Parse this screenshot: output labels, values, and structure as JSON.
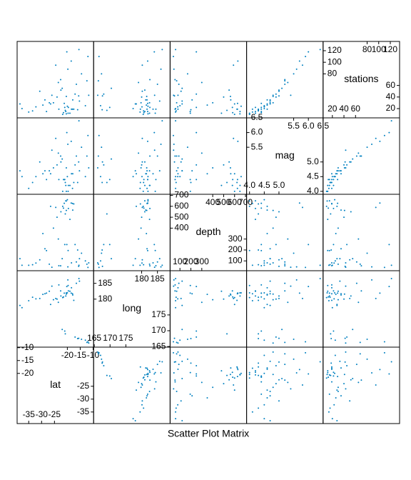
{
  "chart_data": {
    "type": "splom",
    "title": "Scatter Plot Matrix",
    "color": "#0080c0",
    "variables": [
      {
        "name": "lat",
        "lim": [
          -39.5,
          -9.8
        ],
        "ticks": [
          -35,
          -30,
          -25,
          -20,
          -15,
          -10
        ],
        "values": [
          -20.4,
          -20.6,
          -26.0,
          -18.0,
          -20.4,
          -19.7,
          -11.7,
          -28.1,
          -28.7,
          -17.5,
          -21.5,
          -23.3,
          -17.9,
          -15.6,
          -18.4,
          -12.4,
          -21.2,
          -13.0,
          -19.6,
          -22.6,
          -32.2,
          -35.0,
          -25.4,
          -30.7,
          -16.0,
          -21.0,
          -22.0,
          -20.8,
          -19.8,
          -15.3,
          -24.0,
          -26.5,
          -23.5,
          -18.5,
          -20.2,
          -15.5,
          -37.6,
          -38.4,
          -14.5,
          -17.0,
          -22.5,
          -19.0,
          -27.0,
          -12.0,
          -29.5,
          -16.5,
          -21.8,
          -24.5,
          -33.5,
          -20.0
        ]
      },
      {
        "name": "long",
        "lim": [
          164.8,
          189
        ],
        "ticks": [
          165,
          170,
          175,
          180,
          185
        ],
        "values": [
          181.6,
          181.0,
          184.1,
          181.7,
          182.0,
          184.3,
          166.1,
          181.9,
          181.7,
          179.6,
          180.7,
          184.5,
          181.3,
          167.6,
          183.6,
          166.3,
          181.9,
          167.0,
          182.6,
          182.6,
          180.1,
          179.5,
          179.8,
          180.2,
          167.5,
          169.9,
          170.4,
          169.0,
          186.1,
          185.7,
          180.0,
          178.3,
          179.0,
          181.9,
          184.0,
          186.5,
          177.3,
          178.0,
          167.3,
          168.0,
          181.0,
          182.5,
          182.5,
          166.5,
          181.5,
          185.0,
          180.5,
          180.2,
          180.6,
          182.0
        ]
      },
      {
        "name": "depth",
        "lim": [
          10,
          710
        ],
        "ticks": [
          100,
          200,
          300,
          400,
          500,
          600,
          700
        ],
        "values": [
          562,
          650,
          42,
          626,
          649,
          195,
          82,
          194,
          211,
          622,
          583,
          56,
          565,
          50,
          82,
          70,
          627,
          100,
          580,
          55,
          80,
          60,
          400,
          110,
          200,
          250,
          120,
          530,
          45,
          120,
          500,
          600,
          300,
          630,
          250,
          60,
          60,
          120,
          170,
          250,
          550,
          480,
          70,
          40,
          350,
          90,
          600,
          590,
          65,
          660
        ]
      },
      {
        "name": "mag",
        "lim": [
          3.9,
          6.5
        ],
        "ticks": [
          {
            "value": 4,
            "label": "4.0"
          },
          4.5,
          {
            "value": 5,
            "label": "5.0"
          },
          5.5,
          {
            "value": 6,
            "label": "6.0"
          },
          6.5
        ],
        "values": [
          4.8,
          4.2,
          5.4,
          4.1,
          4.0,
          4.0,
          4.8,
          4.4,
          4.7,
          4.3,
          4.4,
          4.4,
          4.6,
          5.0,
          4.6,
          5.2,
          4.4,
          4.5,
          4.2,
          5.2,
          4.5,
          4.1,
          4.8,
          5.0,
          4.3,
          4.4,
          5.1,
          4.3,
          5.6,
          4.7,
          4.9,
          4.6,
          5.3,
          5.7,
          6.0,
          6.4,
          4.5,
          4.7,
          5.5,
          4.9,
          5.0,
          4.2,
          4.7,
          5.9,
          4.6,
          5.2,
          4.0,
          5.8,
          4.3,
          4.5
        ]
      },
      {
        "name": "stations",
        "lim": [
          4,
          136
        ],
        "ticks": [
          20,
          40,
          60,
          80,
          100,
          120
        ],
        "values": [
          41,
          15,
          43,
          19,
          11,
          12,
          43,
          15,
          35,
          19,
          13,
          19,
          35,
          42,
          19,
          68,
          29,
          25,
          22,
          70,
          23,
          14,
          30,
          50,
          18,
          22,
          55,
          17,
          88,
          33,
          40,
          28,
          65,
          102,
          118,
          122,
          20,
          28,
          80,
          45,
          52,
          12,
          30,
          110,
          26,
          62,
          10,
          95,
          16,
          24
        ]
      }
    ]
  }
}
